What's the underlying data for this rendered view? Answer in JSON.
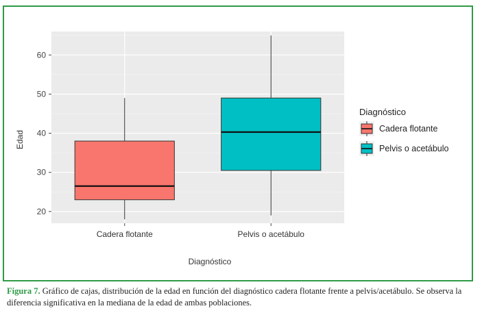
{
  "chart_data": {
    "type": "box",
    "xlabel": "Diagnóstico",
    "ylabel": "Edad",
    "ylim": [
      17,
      66
    ],
    "yticks": [
      20,
      30,
      40,
      50,
      60
    ],
    "categories": [
      "Cadera flotante",
      "Pelvis o acetábulo"
    ],
    "boxes": [
      {
        "category": "Cadera flotante",
        "min": 18,
        "q1": 23,
        "median": 26.5,
        "q3": 38,
        "max": 49,
        "color": "#f8766d"
      },
      {
        "category": "Pelvis o acetábulo",
        "min": 19,
        "q1": 30.5,
        "median": 40.3,
        "q3": 49,
        "max": 65,
        "color": "#00bfc4"
      }
    ],
    "legend": {
      "title": "Diagnóstico",
      "position": "right",
      "entries": [
        "Cadera flotante",
        "Pelvis o acetábulo"
      ]
    },
    "grid": true,
    "panel_background": "#ebebeb"
  },
  "caption": {
    "label": "Figura 7.",
    "text": "Gráfico de cajas, distribución de la edad en función del diagnóstico cadera flotante frente a pelvis/acetábulo. Se observa la diferencia significativa en la mediana de la edad de ambas poblaciones."
  }
}
